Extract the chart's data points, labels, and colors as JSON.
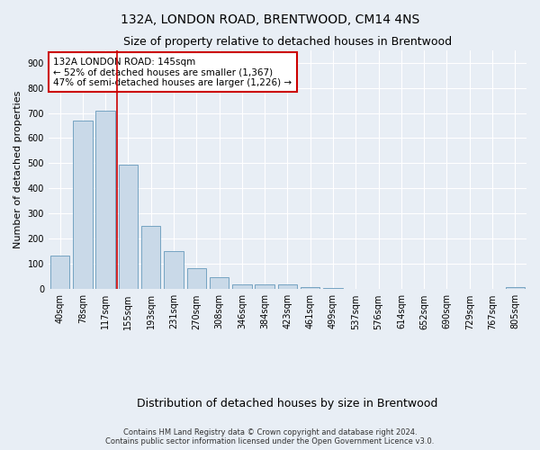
{
  "title": "132A, LONDON ROAD, BRENTWOOD, CM14 4NS",
  "subtitle": "Size of property relative to detached houses in Brentwood",
  "xlabel": "Distribution of detached houses by size in Brentwood",
  "ylabel": "Number of detached properties",
  "categories": [
    "40sqm",
    "78sqm",
    "117sqm",
    "155sqm",
    "193sqm",
    "231sqm",
    "270sqm",
    "308sqm",
    "346sqm",
    "384sqm",
    "423sqm",
    "461sqm",
    "499sqm",
    "537sqm",
    "576sqm",
    "614sqm",
    "652sqm",
    "690sqm",
    "729sqm",
    "767sqm",
    "805sqm"
  ],
  "values": [
    133,
    670,
    710,
    493,
    250,
    150,
    85,
    48,
    20,
    18,
    18,
    10,
    5,
    3,
    2,
    2,
    2,
    2,
    2,
    2,
    10
  ],
  "bar_color": "#c9d9e8",
  "bar_edge_color": "#6699bb",
  "vline_x": 2.5,
  "vline_color": "#cc0000",
  "annotation_text": "132A LONDON ROAD: 145sqm\n← 52% of detached houses are smaller (1,367)\n47% of semi-detached houses are larger (1,226) →",
  "annotation_box_color": "#ffffff",
  "annotation_box_edge": "#cc0000",
  "ylim": [
    0,
    950
  ],
  "yticks": [
    0,
    100,
    200,
    300,
    400,
    500,
    600,
    700,
    800,
    900
  ],
  "footnote": "Contains HM Land Registry data © Crown copyright and database right 2024.\nContains public sector information licensed under the Open Government Licence v3.0.",
  "background_color": "#e8eef5",
  "plot_bg_color": "#e8eef5",
  "grid_color": "#ffffff",
  "title_fontsize": 10,
  "subtitle_fontsize": 9,
  "xlabel_fontsize": 9,
  "ylabel_fontsize": 8,
  "tick_fontsize": 7,
  "annotation_fontsize": 7.5,
  "footnote_fontsize": 6
}
